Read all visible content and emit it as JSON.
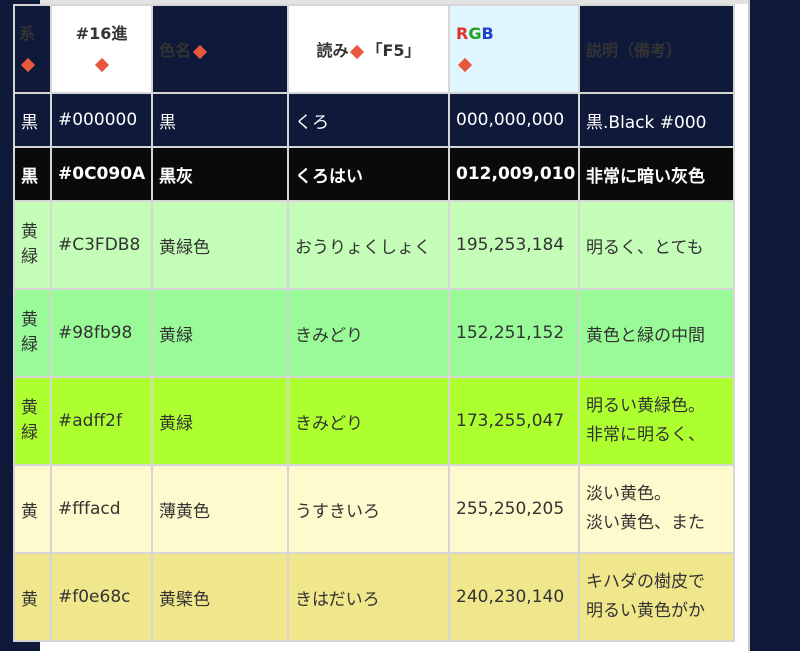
{
  "table": {
    "headers": {
      "kei": "系",
      "hex": "#16進",
      "iromei": "色名",
      "yomi": "読み",
      "yomi_key": "「F5」",
      "rgb_r": "R",
      "rgb_g": "G",
      "rgb_b": "B",
      "setsumei": "説明（備考）"
    },
    "rows": [
      {
        "kei": "黒",
        "hex": "#000000",
        "name": "黒",
        "yomi": "くろ",
        "rgb": "000,000,000",
        "desc": [
          "黒.Black #000"
        ]
      },
      {
        "kei": "黒",
        "hex": "#0C090A",
        "name": "黒灰",
        "yomi": "くろはい",
        "rgb": "012,009,010",
        "desc": [
          "非常に暗い灰色"
        ]
      },
      {
        "kei": "黄緑",
        "hex": "#C3FDB8",
        "name": "黄緑色",
        "yomi": "おうりょくしょく",
        "rgb": "195,253,184",
        "desc": [
          "明るく、とても"
        ]
      },
      {
        "kei": "黄緑",
        "hex": "#98fb98",
        "name": "黄緑",
        "yomi": "きみどり",
        "rgb": "152,251,152",
        "desc": [
          "黄色と緑の中間"
        ]
      },
      {
        "kei": "黄緑",
        "hex": "#adff2f",
        "name": "黄緑",
        "yomi": "きみどり",
        "rgb": "173,255,047",
        "desc": [
          "明るい黄緑色。",
          "非常に明るく、"
        ]
      },
      {
        "kei": "黄",
        "hex": "#fffacd",
        "name": "薄黄色",
        "yomi": "うすきいろ",
        "rgb": "255,250,205",
        "desc": [
          "淡い黄色。",
          "淡い黄色、また"
        ]
      },
      {
        "kei": "黄",
        "hex": "#f0e68c",
        "name": "黄檗色",
        "yomi": "きはだいろ",
        "rgb": "240,230,140",
        "desc": [
          "キハダの樹皮で",
          "明るい黄色がか"
        ]
      }
    ]
  },
  "colors": {
    "background": "#0f1a3a",
    "diamond": "#e8583c",
    "header_dark": "#0f1a3a",
    "header_cyan": "#dff6ff"
  }
}
